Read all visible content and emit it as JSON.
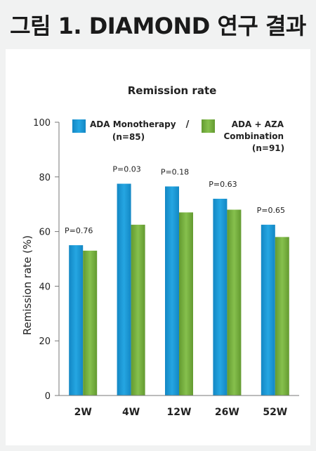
{
  "figure_title": "그림 1. DIAMOND 연구 결과",
  "chart_data": {
    "type": "bar",
    "title": "Remission rate",
    "xlabel": "",
    "ylabel": "Remission rate (%)",
    "ylim": [
      0,
      100
    ],
    "yticks": [
      "0",
      "20",
      "40",
      "60",
      "80",
      "100"
    ],
    "categories": [
      "2W",
      "4W",
      "12W",
      "26W",
      "52W"
    ],
    "series": [
      {
        "name": "ADA Monotherapy",
        "note": "(n=85)",
        "color": "#1f9ad6",
        "values": [
          55,
          77.5,
          76.5,
          72,
          62.5
        ]
      },
      {
        "name": "ADA + AZA Combination",
        "note": "(n=91)",
        "color": "#7ab342",
        "values": [
          53,
          62.5,
          67,
          68,
          58
        ]
      }
    ],
    "annotations": [
      "P=0.76",
      "P=0.03",
      "P=0.18",
      "P=0.63",
      "P=0.65"
    ],
    "legend_separator": "/",
    "grid": false,
    "legend_position": "top"
  }
}
